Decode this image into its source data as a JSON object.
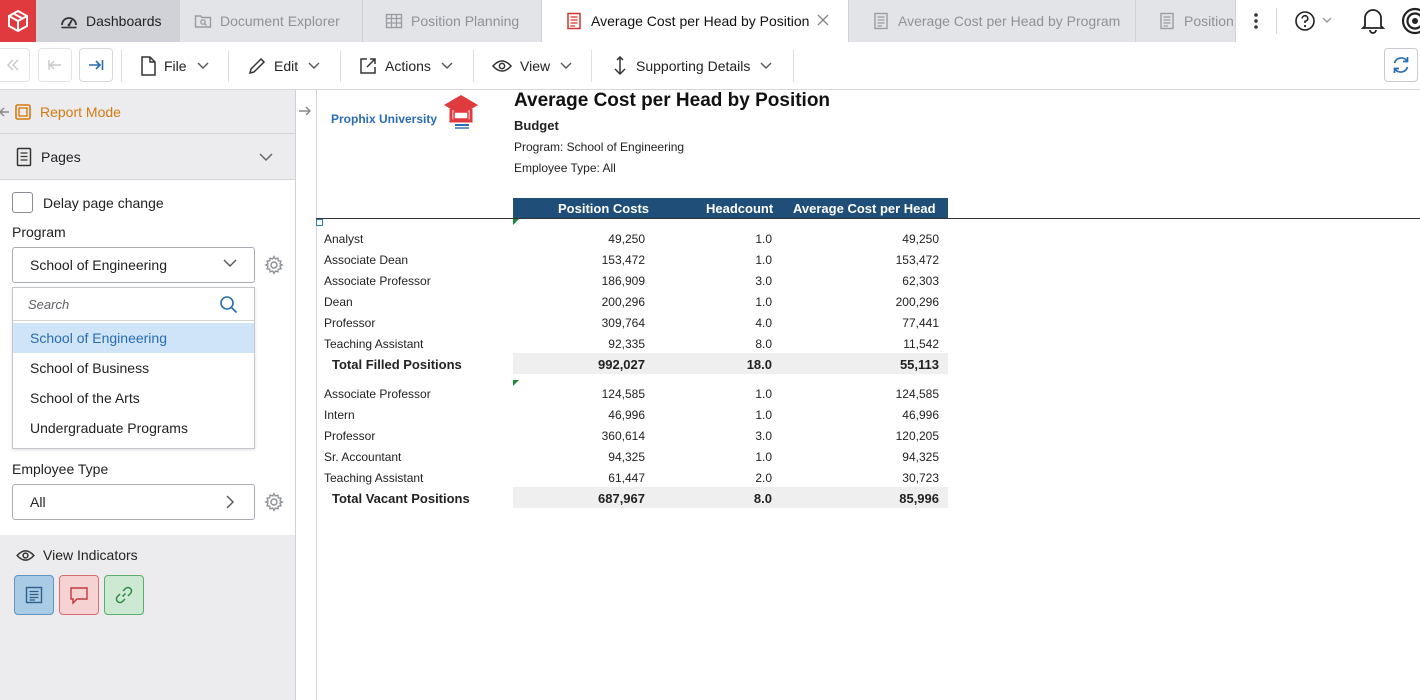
{
  "tabs": [
    {
      "label": "Dashboards",
      "icon": "dashboard-icon"
    },
    {
      "label": "Document Explorer",
      "icon": "folder-search-icon"
    },
    {
      "label": "Position Planning",
      "icon": "grid-icon"
    },
    {
      "label": "Average Cost per Head by Position",
      "icon": "report-icon"
    },
    {
      "label": "Average Cost per Head by Program",
      "icon": "report-icon"
    },
    {
      "label": "Position",
      "icon": "report-icon"
    }
  ],
  "toolbar": {
    "file": "File",
    "edit": "Edit",
    "actions": "Actions",
    "view": "View",
    "supporting": "Supporting Details"
  },
  "sidebar": {
    "report_mode": "Report Mode",
    "pages": "Pages",
    "delay_label": "Delay page change",
    "program_label": "Program",
    "program_value": "School of Engineering",
    "search_placeholder": "Search",
    "options": [
      "School of Engineering",
      "School of Business",
      "School of the Arts",
      "Undergraduate Programs"
    ],
    "employee_type_label": "Employee Type",
    "employee_type_value": "All",
    "view_indicators": "View Indicators"
  },
  "report": {
    "brand": "Prophix University",
    "title": "Average Cost per Head by Position",
    "scenario": "Budget",
    "program_line": "Program: School of Engineering",
    "employee_line": "Employee Type: All",
    "headers": [
      "Position Costs",
      "Headcount",
      "Average Cost per Head"
    ],
    "filled": [
      {
        "name": "Analyst",
        "cost": "49,250",
        "head": "1.0",
        "avg": "49,250"
      },
      {
        "name": "Associate Dean",
        "cost": "153,472",
        "head": "1.0",
        "avg": "153,472"
      },
      {
        "name": "Associate Professor",
        "cost": "186,909",
        "head": "3.0",
        "avg": "62,303"
      },
      {
        "name": "Dean",
        "cost": "200,296",
        "head": "1.0",
        "avg": "200,296"
      },
      {
        "name": "Professor",
        "cost": "309,764",
        "head": "4.0",
        "avg": "77,441"
      },
      {
        "name": "Teaching Assistant",
        "cost": "92,335",
        "head": "8.0",
        "avg": "11,542"
      }
    ],
    "filled_total": {
      "name": "Total Filled Positions",
      "cost": "992,027",
      "head": "18.0",
      "avg": "55,113"
    },
    "vacant": [
      {
        "name": "Associate Professor",
        "cost": "124,585",
        "head": "1.0",
        "avg": "124,585"
      },
      {
        "name": "Intern",
        "cost": "46,996",
        "head": "1.0",
        "avg": "46,996"
      },
      {
        "name": "Professor",
        "cost": "360,614",
        "head": "3.0",
        "avg": "120,205"
      },
      {
        "name": "Sr. Accountant",
        "cost": "94,325",
        "head": "1.0",
        "avg": "94,325"
      },
      {
        "name": "Teaching Assistant",
        "cost": "61,447",
        "head": "2.0",
        "avg": "30,723"
      }
    ],
    "vacant_total": {
      "name": "Total Vacant Positions",
      "cost": "687,967",
      "head": "8.0",
      "avg": "85,996"
    }
  },
  "colors": {
    "accent": "#e0393e",
    "header": "#1f4e79",
    "report_mode": "#d4790f",
    "selection": "#cfe4f6"
  }
}
